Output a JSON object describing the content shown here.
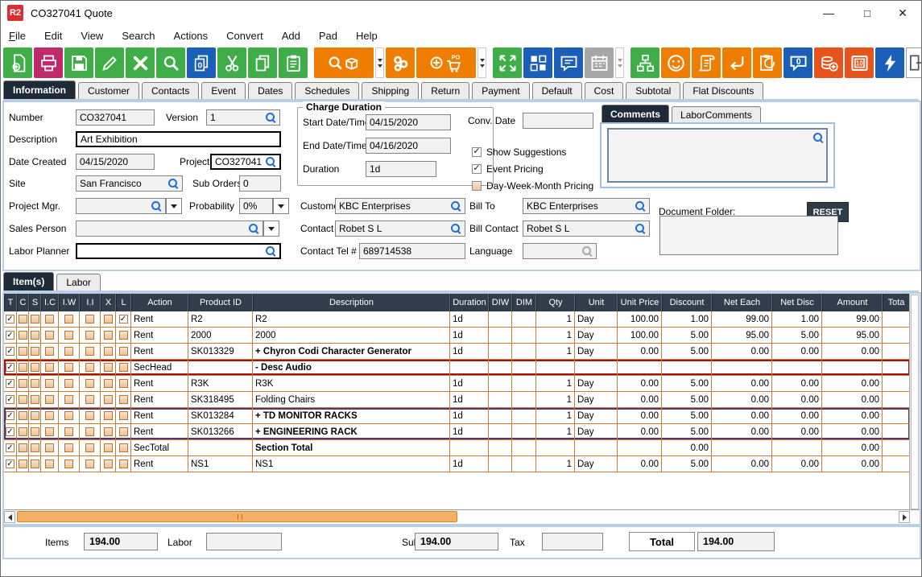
{
  "window": {
    "title": "CO327041 Quote",
    "logo": "R2",
    "controls": {
      "minimize": "minimize",
      "maximize": "maximize",
      "close": "close"
    }
  },
  "menu": {
    "items": [
      "File",
      "Edit",
      "View",
      "Search",
      "Actions",
      "Convert",
      "Add",
      "Pad",
      "Help"
    ]
  },
  "toolbar": {
    "buttons": [
      {
        "name": "new-record",
        "color": "#3fae49"
      },
      {
        "name": "print",
        "color": "#c02a68"
      },
      {
        "name": "save",
        "color": "#3fae49"
      },
      {
        "name": "edit",
        "color": "#3fae49"
      },
      {
        "name": "delete",
        "color": "#3fae49"
      },
      {
        "name": "search",
        "color": "#3fae49"
      },
      {
        "name": "copy-zero",
        "color": "#1a5eb8"
      },
      {
        "name": "cut",
        "color": "#3fae49"
      },
      {
        "name": "copy",
        "color": "#3fae49"
      },
      {
        "name": "paste",
        "color": "#3fae49"
      },
      {
        "name": "find-item",
        "color": "#ef7d00",
        "wide": true,
        "dd": true,
        "gap": true
      },
      {
        "name": "gears",
        "color": "#ef7d00"
      },
      {
        "name": "add-po",
        "color": "#ef7d00",
        "wide": true,
        "dd": true
      },
      {
        "name": "expand",
        "color": "#3fae49",
        "gap": true
      },
      {
        "name": "layout",
        "color": "#1a5eb8"
      },
      {
        "name": "comment",
        "color": "#1a5eb8"
      },
      {
        "name": "calendar",
        "color": "#a7a7a7",
        "dd": true,
        "disabled": true
      },
      {
        "name": "hierarchy",
        "color": "#3fae49",
        "gap": true
      },
      {
        "name": "smiley",
        "color": "#ef7d00"
      },
      {
        "name": "scroll",
        "color": "#ef7d00"
      },
      {
        "name": "return",
        "color": "#ef7d00"
      },
      {
        "name": "transfer",
        "color": "#ef7d00"
      },
      {
        "name": "speech-zero",
        "color": "#1a5eb8"
      },
      {
        "name": "coins-add",
        "color": "#e8531c"
      },
      {
        "name": "vault",
        "color": "#e8531c"
      },
      {
        "name": "lightning",
        "color": "#1a5eb8"
      }
    ],
    "exit": {
      "name": "exit"
    }
  },
  "tabs": {
    "items": [
      "Information",
      "Customer",
      "Contacts",
      "Event",
      "Dates",
      "Schedules",
      "Shipping",
      "Return",
      "Payment",
      "Default",
      "Cost",
      "Subtotal",
      "Flat Discounts"
    ],
    "selected": "Information"
  },
  "info": {
    "number": {
      "label": "Number",
      "value": "CO327041"
    },
    "version": {
      "label": "Version",
      "value": "1"
    },
    "description": {
      "label": "Description",
      "value": "Art Exhibition"
    },
    "date_created": {
      "label": "Date Created",
      "value": "04/15/2020"
    },
    "project": {
      "label": "Project",
      "value": "CO327041"
    },
    "site": {
      "label": "Site",
      "value": "San Francisco"
    },
    "sub_orders": {
      "label": "Sub Orders",
      "value": "0"
    },
    "project_mgr": {
      "label": "Project Mgr.",
      "value": ""
    },
    "probability": {
      "label": "Probability",
      "value": "0%"
    },
    "sales_person": {
      "label": "Sales Person",
      "value": ""
    },
    "labor_planner": {
      "label": "Labor Planner",
      "value": ""
    },
    "charge_duration": {
      "legend": "Charge Duration",
      "start": {
        "label": "Start Date/Time",
        "value": "04/15/2020"
      },
      "end": {
        "label": "End Date/Time",
        "value": "04/16/2020"
      },
      "duration": {
        "label": "Duration",
        "value": "1d"
      }
    },
    "conv_date": {
      "label": "Conv. Date",
      "value": ""
    },
    "options": [
      {
        "label": "Show Suggestions",
        "checked": true
      },
      {
        "label": "Event Pricing",
        "checked": true
      },
      {
        "label": "Day-Week-Month Pricing",
        "checked": false
      }
    ],
    "customer": {
      "label": "Customer",
      "value": "KBC Enterprises"
    },
    "bill_to": {
      "label": "Bill To",
      "value": "KBC Enterprises"
    },
    "contact": {
      "label": "Contact",
      "value": "Robet S L"
    },
    "bill_contact": {
      "label": "Bill Contact",
      "value": "Robet S L"
    },
    "contact_tel": {
      "label": "Contact Tel #",
      "value": "689714538"
    },
    "language": {
      "label": "Language",
      "value": ""
    },
    "comments_tabs": {
      "items": [
        "Comments",
        "LaborComments"
      ],
      "selected": "Comments"
    },
    "document_folder": {
      "label": "Document Folder:",
      "reset": "RESET"
    }
  },
  "items_panel": {
    "tabs": [
      "Item(s)",
      "Labor"
    ],
    "selected": "Item(s)"
  },
  "table": {
    "columns": [
      "T",
      "C",
      "S",
      "I.C",
      "I.W",
      "I.I",
      "X",
      "L",
      "Action",
      "Product ID",
      "Description",
      "Duration",
      "DIW",
      "DIM",
      "Qty",
      "Unit",
      "Unit Price",
      "Discount",
      "Net Each",
      "Net Disc",
      "Amount",
      "Tota"
    ],
    "rows": [
      {
        "checks": [
          1,
          0,
          0,
          0,
          0,
          0,
          0,
          1
        ],
        "action": "Rent",
        "product_id": "R2",
        "description": "R2",
        "bold": false,
        "duration": "1d",
        "diw": "",
        "dim": "",
        "qty": "1",
        "unit": "Day",
        "unit_price": "100.00",
        "discount": "1.00",
        "net_each": "99.00",
        "net_disc": "1.00",
        "amount": "99.00",
        "tota": "",
        "style": "normal"
      },
      {
        "checks": [
          1,
          0,
          0,
          0,
          0,
          0,
          0,
          0
        ],
        "action": "Rent",
        "product_id": "2000",
        "description": "2000",
        "bold": false,
        "duration": "1d",
        "diw": "",
        "dim": "",
        "qty": "1",
        "unit": "Day",
        "unit_price": "100.00",
        "discount": "5.00",
        "net_each": "95.00",
        "net_disc": "5.00",
        "amount": "95.00",
        "tota": "",
        "style": "normal"
      },
      {
        "checks": [
          1,
          0,
          0,
          0,
          0,
          0,
          0,
          0
        ],
        "action": "Rent",
        "product_id": "SK013329",
        "description": "+  Chyron Codi Character Generator",
        "bold": true,
        "duration": "1d",
        "diw": "",
        "dim": "",
        "qty": "1",
        "unit": "Day",
        "unit_price": "0.00",
        "discount": "5.00",
        "net_each": "0.00",
        "net_disc": "0.00",
        "amount": "0.00",
        "tota": "",
        "style": "normal"
      },
      {
        "checks": [
          1,
          0,
          0,
          0,
          0,
          0,
          0,
          0
        ],
        "action": "SecHead",
        "product_id": "",
        "description": "-  Desc Audio",
        "bold": true,
        "duration": "",
        "diw": "",
        "dim": "",
        "qty": "",
        "unit": "",
        "unit_price": "",
        "discount": "",
        "net_each": "",
        "net_disc": "",
        "amount": "",
        "tota": "",
        "style": "red"
      },
      {
        "checks": [
          1,
          0,
          0,
          0,
          0,
          0,
          0,
          0
        ],
        "action": "Rent",
        "product_id": "R3K",
        "description": "R3K",
        "bold": false,
        "duration": "1d",
        "diw": "",
        "dim": "",
        "qty": "1",
        "unit": "Day",
        "unit_price": "0.00",
        "discount": "5.00",
        "net_each": "0.00",
        "net_disc": "0.00",
        "amount": "0.00",
        "tota": "",
        "style": "normal"
      },
      {
        "checks": [
          1,
          0,
          0,
          0,
          0,
          0,
          0,
          0
        ],
        "action": "Rent",
        "product_id": "SK318495",
        "description": "Folding Chairs",
        "bold": false,
        "duration": "1d",
        "diw": "",
        "dim": "",
        "qty": "1",
        "unit": "Day",
        "unit_price": "0.00",
        "discount": "5.00",
        "net_each": "0.00",
        "net_disc": "0.00",
        "amount": "0.00",
        "tota": "",
        "style": "normal"
      },
      {
        "checks": [
          1,
          0,
          0,
          0,
          0,
          0,
          0,
          0
        ],
        "action": "Rent",
        "product_id": "SK013284",
        "description": "+  TD MONITOR RACKS",
        "bold": true,
        "duration": "1d",
        "diw": "",
        "dim": "",
        "qty": "1",
        "unit": "Day",
        "unit_price": "0.00",
        "discount": "5.00",
        "net_each": "0.00",
        "net_disc": "0.00",
        "amount": "0.00",
        "tota": "",
        "style": "ptop"
      },
      {
        "checks": [
          1,
          0,
          0,
          0,
          0,
          0,
          0,
          0
        ],
        "action": "Rent",
        "product_id": "SK013266",
        "description": "+  ENGINEERING RACK",
        "bold": true,
        "duration": "1d",
        "diw": "",
        "dim": "",
        "qty": "1",
        "unit": "Day",
        "unit_price": "0.00",
        "discount": "5.00",
        "net_each": "0.00",
        "net_disc": "0.00",
        "amount": "0.00",
        "tota": "",
        "style": "pbot"
      },
      {
        "checks": [
          1,
          0,
          0,
          0,
          0,
          0,
          0,
          0
        ],
        "action": "SecTotal",
        "product_id": "",
        "description": "Section Total",
        "bold": true,
        "duration": "",
        "diw": "",
        "dim": "",
        "qty": "",
        "unit": "",
        "unit_price": "",
        "discount": "0.00",
        "net_each": "",
        "net_disc": "",
        "amount": "0.00",
        "tota": "",
        "style": "normal"
      },
      {
        "checks": [
          1,
          0,
          0,
          0,
          0,
          0,
          0,
          0
        ],
        "action": "Rent",
        "product_id": "NS1",
        "description": "NS1",
        "bold": false,
        "duration": "1d",
        "diw": "",
        "dim": "",
        "qty": "1",
        "unit": "Day",
        "unit_price": "0.00",
        "discount": "5.00",
        "net_each": "0.00",
        "net_disc": "0.00",
        "amount": "0.00",
        "tota": "",
        "style": "normal"
      }
    ]
  },
  "totals": {
    "items": {
      "label": "Items",
      "value": "194.00"
    },
    "labor": {
      "label": "Labor",
      "value": ""
    },
    "subtotal": {
      "label": "Subtotal",
      "value": "194.00"
    },
    "tax": {
      "label": "Tax",
      "value": ""
    },
    "total": {
      "label": "Total",
      "value": "194.00"
    }
  }
}
